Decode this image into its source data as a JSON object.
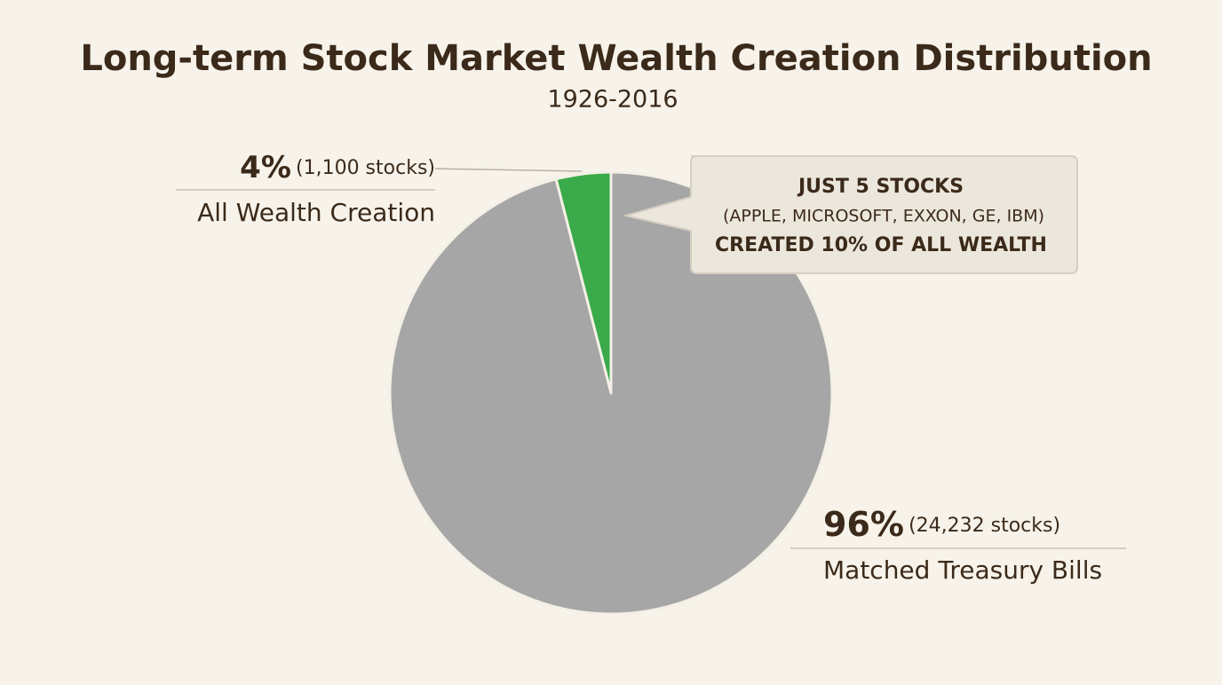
{
  "chart_data": {
    "type": "pie",
    "title": "Long-term Stock Market Wealth Creation Distribution",
    "subtitle": "1926-2016",
    "categories": [
      "All Wealth Creation",
      "Matched Treasury Bills"
    ],
    "values": [
      4,
      96
    ],
    "value_labels": [
      "4%",
      "96%"
    ],
    "details": [
      "(1,100 stocks)",
      "(24,232 stocks)"
    ],
    "colors": [
      "#3aaa4a",
      "#a6a6a6"
    ],
    "annotation": [
      "JUST 5 STOCKS",
      "(APPLE, MICROSOFT, EXXON, GE, IBM)",
      "CREATED 10% OF ALL WEALTH"
    ]
  }
}
